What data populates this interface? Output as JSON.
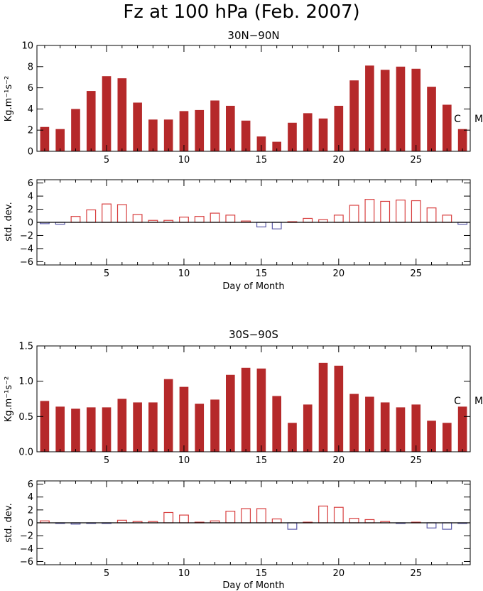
{
  "title": "Fz at 100 hPa (Feb. 2007)",
  "colors": {
    "bar": "#b5292a",
    "positive": "#d84040",
    "negative": "#5a5aa8",
    "axis": "#000000"
  },
  "x_label": "Day of Month",
  "chart_data": [
    {
      "type": "bar",
      "panel": "30N-90N flux",
      "title": "30N−90N",
      "ylabel": "Kg.m⁻¹s⁻²",
      "xlim": [
        0.5,
        28.5
      ],
      "ylim": [
        0,
        10
      ],
      "yticks": [
        "0",
        "2",
        "4",
        "6",
        "8",
        "10"
      ],
      "ytick_values": [
        0,
        2,
        4,
        6,
        8,
        10
      ],
      "xticks": [
        "5",
        "10",
        "15",
        "20",
        "25"
      ],
      "xtick_values": [
        5,
        10,
        15,
        20,
        25
      ],
      "annotations": [
        "C",
        "M"
      ],
      "x": [
        1,
        2,
        3,
        4,
        5,
        6,
        7,
        8,
        9,
        10,
        11,
        12,
        13,
        14,
        15,
        16,
        17,
        18,
        19,
        20,
        21,
        22,
        23,
        24,
        25,
        26,
        27,
        28
      ],
      "values": [
        2.3,
        2.1,
        4.0,
        5.7,
        7.1,
        6.9,
        4.6,
        3.0,
        3.0,
        3.8,
        3.9,
        4.8,
        4.3,
        2.9,
        1.4,
        0.9,
        2.7,
        3.6,
        3.1,
        4.3,
        6.7,
        8.1,
        7.7,
        8.0,
        7.8,
        6.1,
        4.4,
        2.1
      ]
    },
    {
      "type": "bar",
      "panel": "30N-90N std dev",
      "ylabel": "std. dev.",
      "xlabel": "Day of Month",
      "xlim": [
        0.5,
        28.5
      ],
      "ylim": [
        -6.5,
        6.5
      ],
      "yticks": [
        "6",
        "4",
        "2",
        "0",
        "−2",
        "−4",
        "−6"
      ],
      "ytick_values": [
        6,
        4,
        2,
        0,
        -2,
        -4,
        -6
      ],
      "xticks": [
        "5",
        "10",
        "15",
        "20",
        "25"
      ],
      "xtick_values": [
        5,
        10,
        15,
        20,
        25
      ],
      "x": [
        1,
        2,
        3,
        4,
        5,
        6,
        7,
        8,
        9,
        10,
        11,
        12,
        13,
        14,
        15,
        16,
        17,
        18,
        19,
        20,
        21,
        22,
        23,
        24,
        25,
        26,
        27,
        28
      ],
      "values": [
        -0.2,
        -0.3,
        0.9,
        1.9,
        2.8,
        2.7,
        1.2,
        0.3,
        0.3,
        0.8,
        0.9,
        1.4,
        1.1,
        0.2,
        -0.7,
        -1.0,
        0.1,
        0.6,
        0.4,
        1.1,
        2.6,
        3.5,
        3.2,
        3.4,
        3.3,
        2.2,
        1.1,
        -0.3
      ]
    },
    {
      "type": "bar",
      "panel": "30S-90S flux",
      "title": "30S−90S",
      "ylabel": "Kg.m⁻¹s⁻²",
      "xlim": [
        0.5,
        28.5
      ],
      "ylim": [
        0,
        1.5
      ],
      "yticks": [
        "0.0",
        "0.5",
        "1.0",
        "1.5"
      ],
      "ytick_values": [
        0,
        0.5,
        1.0,
        1.5
      ],
      "xticks": [
        "5",
        "10",
        "15",
        "20",
        "25"
      ],
      "xtick_values": [
        5,
        10,
        15,
        20,
        25
      ],
      "annotations": [
        "C",
        "M"
      ],
      "x": [
        1,
        2,
        3,
        4,
        5,
        6,
        7,
        8,
        9,
        10,
        11,
        12,
        13,
        14,
        15,
        16,
        17,
        18,
        19,
        20,
        21,
        22,
        23,
        24,
        25,
        26,
        27,
        28
      ],
      "values": [
        0.72,
        0.64,
        0.61,
        0.63,
        0.63,
        0.75,
        0.7,
        0.7,
        1.03,
        0.92,
        0.68,
        0.74,
        1.09,
        1.19,
        1.18,
        0.79,
        0.41,
        0.67,
        1.26,
        1.22,
        0.82,
        0.78,
        0.7,
        0.63,
        0.67,
        0.44,
        0.41,
        0.64
      ]
    },
    {
      "type": "bar",
      "panel": "30S-90S std dev",
      "ylabel": "std. dev.",
      "xlabel": "Day of Month",
      "xlim": [
        0.5,
        28.5
      ],
      "ylim": [
        -6.5,
        6.5
      ],
      "yticks": [
        "6",
        "4",
        "2",
        "0",
        "−2",
        "−4",
        "−6"
      ],
      "ytick_values": [
        6,
        4,
        2,
        0,
        -2,
        -4,
        -6
      ],
      "xticks": [
        "5",
        "10",
        "15",
        "20",
        "25"
      ],
      "xtick_values": [
        5,
        10,
        15,
        20,
        25
      ],
      "x": [
        1,
        2,
        3,
        4,
        5,
        6,
        7,
        8,
        9,
        10,
        11,
        12,
        13,
        14,
        15,
        16,
        17,
        18,
        19,
        20,
        21,
        22,
        23,
        24,
        25,
        26,
        27,
        28
      ],
      "values": [
        0.3,
        -0.1,
        -0.2,
        -0.1,
        -0.1,
        0.4,
        0.2,
        0.2,
        1.6,
        1.2,
        0.1,
        0.3,
        1.8,
        2.2,
        2.2,
        0.6,
        -1.0,
        0.1,
        2.6,
        2.4,
        0.7,
        0.5,
        0.2,
        -0.1,
        0.1,
        -0.8,
        -1.0,
        -0.1
      ]
    }
  ]
}
